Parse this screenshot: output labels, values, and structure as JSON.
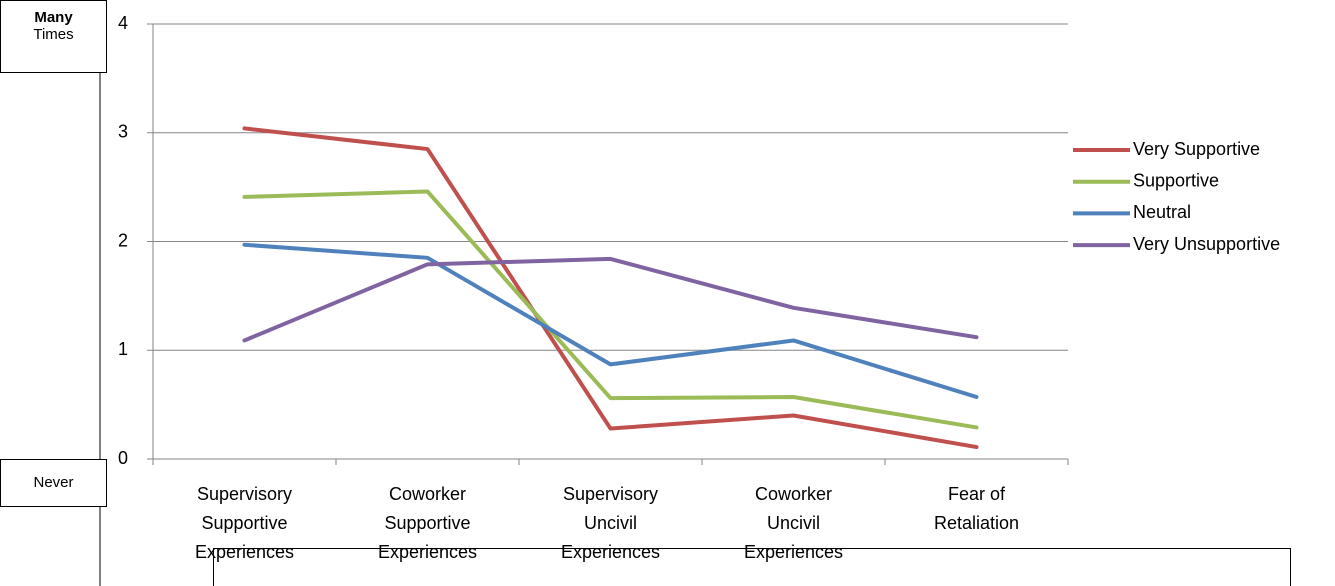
{
  "chart_data": {
    "type": "line",
    "categories": [
      "Supervisory\nSupportive\nExperiences",
      "Coworker\nSupportive\nExperiences",
      "Supervisory\nUncivil\nExperiences",
      "Coworker\nUncivil\nExperiences",
      "Fear of\nRetaliation"
    ],
    "series": [
      {
        "name": "Very Supportive",
        "color": "#c0504d",
        "values": [
          3.04,
          2.85,
          0.28,
          0.4,
          0.11
        ]
      },
      {
        "name": "Supportive",
        "color": "#9bbb59",
        "values": [
          2.41,
          2.46,
          0.56,
          0.57,
          0.29
        ]
      },
      {
        "name": "Neutral",
        "color": "#4f81bd",
        "values": [
          1.97,
          1.85,
          0.87,
          1.09,
          0.57
        ]
      },
      {
        "name": "Very Unsupportive",
        "color": "#8064a2",
        "values": [
          1.09,
          1.79,
          1.84,
          1.39,
          1.12
        ]
      }
    ],
    "ylim": [
      0,
      4
    ],
    "yticks": [
      0,
      1,
      2,
      3,
      4
    ],
    "grid": true,
    "legend": "right",
    "annotations": {
      "many": "Many",
      "times": "Times",
      "never": "Never"
    }
  }
}
